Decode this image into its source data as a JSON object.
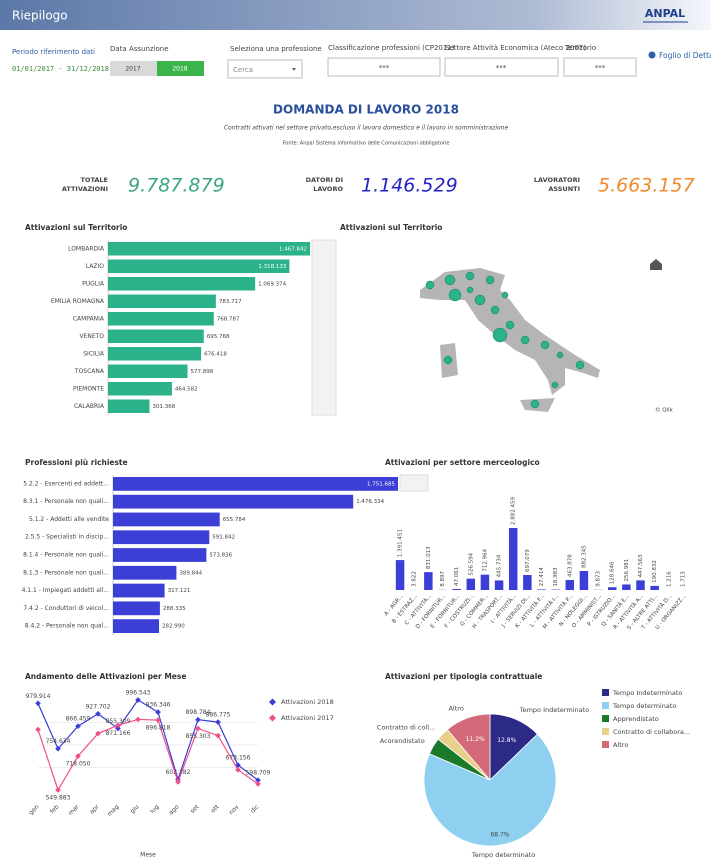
{
  "header": {
    "title": "Riepilogo",
    "logo": "ANPAL"
  },
  "filters": {
    "period_label": "Periodo riferimento dati",
    "period": "01/01/2017 - 31/12/2018",
    "date_label": "Data Assunzione",
    "years": [
      "2017",
      "2018"
    ],
    "profession_label": "Seleziona una professione",
    "search": "Cerca",
    "classification_label": "Classificazione professioni (CP2011)",
    "classification": "***",
    "sector_label": "Settore Attività Economica (Ateco 2007)",
    "sector": "***",
    "territory_label": "Territorio",
    "territory": "***",
    "details": "Foglio di Dettagli"
  },
  "report": {
    "title": "DOMANDA DI LAVORO 2018",
    "subtitle": "Contratti attivati nel settore privato,escluso il lavoro domestico e il lavoro in somministrazione",
    "source": "Fonte: Anpal Sistema informativo delle Comunicazioni obbligatorie"
  },
  "kpis": [
    {
      "label": [
        "TOTALE",
        "ATTIVAZIONI"
      ],
      "value": "9.787.879",
      "color": "#3aa57e"
    },
    {
      "label": [
        "DATORI DI",
        "LAVORO"
      ],
      "value": "1.146.529",
      "color": "#2424c8"
    },
    {
      "label": [
        "LAVORATORI",
        "ASSUNTI"
      ],
      "value": "5.663.157",
      "color": "#f08a2a"
    }
  ],
  "chart_data": [
    {
      "type": "bar",
      "orientation": "horizontal",
      "title": "Attivazioni sul Territorio",
      "color": "#2bb28b",
      "categories": [
        "LOMBARDIA",
        "LAZIO",
        "PUGLIA",
        "EMILIA ROMAGNA",
        "CAMPANIA",
        "VENETO",
        "SICILIA",
        "TOSCANA",
        "PIEMONTE",
        "CALABRIA"
      ],
      "values": [
        1467842,
        1318133,
        1069374,
        783717,
        768787,
        695768,
        676418,
        577898,
        464582,
        301368
      ],
      "value_labels": [
        "1.467.842",
        "1.318.133",
        "1.069.374",
        "783.717",
        "768.787",
        "695.768",
        "676.418",
        "577.898",
        "464.582",
        "301.368"
      ]
    },
    {
      "type": "map",
      "title": "Attivazioni sul Territorio",
      "credit": "© Qlik"
    },
    {
      "type": "bar",
      "orientation": "horizontal",
      "title": "Professioni più richieste",
      "color": "#3b3fd6",
      "categories": [
        "5.2.2 - Esercenti ed addett...",
        "8.3.1 - Personale non quali...",
        "5.1.2 - Addetti alle vendite",
        "2.5.5 - Specialisti in discip...",
        "8.1.4 - Personale non quali...",
        "8.1.3 - Personale non quali...",
        "4.1.1 - Impiegati addetti all...",
        "7.4.2 - Conduttori di veicol...",
        "8.4.2 - Personale non qual..."
      ],
      "values": [
        1751685,
        1476334,
        655784,
        591842,
        573836,
        389844,
        317121,
        288335,
        282990
      ],
      "value_labels": [
        "1.751.685",
        "1.476.334",
        "655.784",
        "591.842",
        "573.836",
        "389.844",
        "317.121",
        "288.335",
        "282.990"
      ]
    },
    {
      "type": "bar",
      "orientation": "vertical",
      "title": "Attivazioni per settore merceologico",
      "color": "#3b3fd6",
      "categories": [
        "A - AGR...",
        "B - ESTRAZ...",
        "C - ATTIVITÀ...",
        "D - FORNITUR...",
        "E - FORNITUR...",
        "F - COSTRUZI...",
        "G - COMMER...",
        "H - TRASPORT...",
        "I - ATTIVITÀ...",
        "J - SERVIZI DI...",
        "K - ATTIVITÀ F...",
        "L - ATTIVITÀ I...",
        "M - ATTIVITÀ P...",
        "N - NOLEGGI...",
        "O - AMMINIST...",
        "P - ISTRUZIO...",
        "Q - SANITÀ E...",
        "R - ATTIVITÀ A...",
        "S - ALTRE ATTI...",
        "T - ATTIVITÀ D...",
        "U - ORGANIZZ..."
      ],
      "values": [
        1391451,
        3822,
        831013,
        8897,
        47061,
        526594,
        712964,
        445734,
        2882459,
        697079,
        27414,
        18983,
        463878,
        882345,
        9873,
        128646,
        256981,
        447563,
        190832,
        1216,
        1713
      ],
      "value_labels": [
        "1.391.451",
        "3.822",
        "831.013",
        "8.897",
        "47.061",
        "526.594",
        "712.964",
        "445.734",
        "2.882.459",
        "697.079",
        "27.414",
        "18.983",
        "463.878",
        "882.345",
        "9.873",
        "128.646",
        "256.981",
        "447.563",
        "190.832",
        "1.216",
        "1.713"
      ]
    },
    {
      "type": "line",
      "title": "Andamento delle Attivazioni per Mese",
      "x_label": "Mese",
      "categories": [
        "gen",
        "feb",
        "mar",
        "apr",
        "mag",
        "giu",
        "lug",
        "ago",
        "set",
        "ott",
        "nov",
        "dic"
      ],
      "series": [
        {
          "name": "Attivazioni 2018",
          "color": "#3b3fd6",
          "values": [
            979914,
            754634,
            866459,
            927702,
            855309,
            996543,
            936346,
            602282,
            898784,
            886775,
            673156,
            598709
          ],
          "value_labels": [
            "979.914",
            "754.634",
            "866.459",
            "927.702",
            "855.309",
            "996.543",
            "936.346",
            "602.282",
            "898.784",
            "886.775",
            "673.156",
            "598.709"
          ]
        },
        {
          "name": "Attivazioni 2017",
          "color": "#f0508a",
          "values": [
            850000,
            549883,
            718050,
            830000,
            871166,
            900000,
            896818,
            590000,
            855303,
            820000,
            650000,
            580000
          ],
          "value_labels": [
            null,
            "549.883",
            "718.050",
            null,
            "871.166",
            null,
            "896.818",
            null,
            "855.303",
            null,
            null,
            null
          ]
        }
      ]
    },
    {
      "type": "pie",
      "title": "Attivazioni per tipologia contrattuale",
      "categories": [
        "Tempo Indeterminato",
        "Tempo determinato",
        "Apprendistato",
        "Contratto di collabora...",
        "Altro"
      ],
      "outer_labels": [
        "Tempo Indeterminato",
        "Tempo determinato",
        "Acorendistato",
        "Contratto di coll...",
        "Altro"
      ],
      "values": [
        12.8,
        68.7,
        4.1,
        3.2,
        11.2
      ],
      "value_labels": [
        "12.8%",
        "68.7%",
        null,
        null,
        "11.2%"
      ],
      "colors": [
        "#2c2a86",
        "#8fd0f0",
        "#1a7a2a",
        "#e8d08a",
        "#d4697a"
      ]
    }
  ]
}
